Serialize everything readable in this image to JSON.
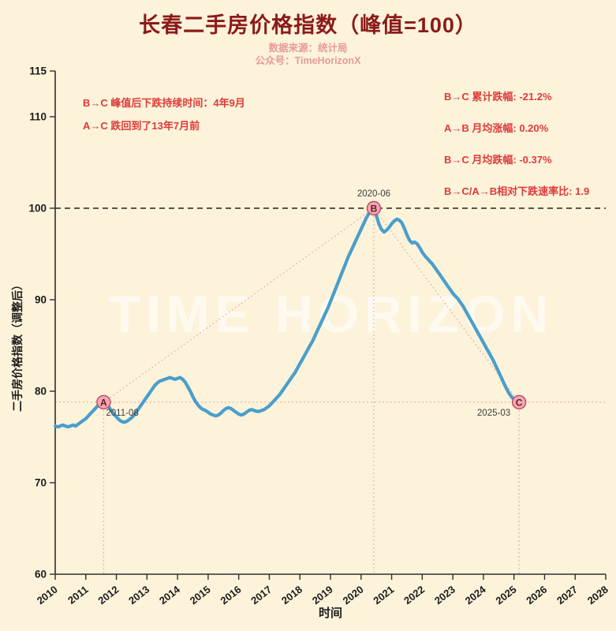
{
  "title": "长春二手房价格指数（峰值=100）",
  "subtitle_source": "数据来源：统计局",
  "subtitle_account": "公众号：TimeHorizonX",
  "watermark": "TIME HORIZON",
  "xlabel": "时间",
  "ylabel": "二手房价格指数（调整后）",
  "annotations_left": [
    "B→C 峰值后下跌持续时间：4年9月",
    "A→C 跌回到了13年7月前"
  ],
  "annotations_right": [
    "B→C 累计跌幅: -21.2%",
    "A→B 月均涨幅: 0.20%",
    "B→C 月均跌幅: -0.37%",
    "B→C/A→B相对下跌速率比: 1.9"
  ],
  "colors": {
    "background": "#fcf3da",
    "title": "#8b1a1a",
    "subtitle": "#e89a9a",
    "annotation_red": "#e03a3a",
    "line_blue": "#4a9ecb",
    "reference_pink": "#e8a4a4",
    "peak_dash_black": "#222222",
    "marker_fill": "#f4a7b4",
    "marker_edge": "#bd4a63",
    "marker_letter": "#5f1f1f",
    "axis": "#2f2f2f",
    "tick_text": "#1c1c1c",
    "date_label": "#3d3d3d"
  },
  "chart_data": {
    "type": "line",
    "title": "长春二手房价格指数（峰值=100）",
    "xlabel": "时间",
    "ylabel": "二手房价格指数（调整后）",
    "x_start": "2010-01",
    "x_freq": "monthly",
    "xlim": [
      2010,
      2028
    ],
    "ylim": [
      60,
      115
    ],
    "xticks": [
      2010,
      2011,
      2012,
      2013,
      2014,
      2015,
      2016,
      2017,
      2018,
      2019,
      2020,
      2021,
      2022,
      2023,
      2024,
      2025,
      2026,
      2027,
      2028
    ],
    "yticks": [
      60,
      70,
      80,
      90,
      100,
      110,
      115
    ],
    "grid": false,
    "values": [
      76.2,
      76.1,
      76.2,
      76.3,
      76.2,
      76.1,
      76.2,
      76.3,
      76.2,
      76.4,
      76.6,
      76.8,
      77.0,
      77.3,
      77.6,
      77.9,
      78.2,
      78.5,
      78.7,
      78.8,
      78.6,
      78.3,
      77.9,
      77.5,
      77.2,
      76.9,
      76.7,
      76.6,
      76.7,
      76.9,
      77.1,
      77.4,
      77.8,
      78.2,
      78.6,
      79.0,
      79.4,
      79.8,
      80.2,
      80.6,
      80.9,
      81.1,
      81.2,
      81.3,
      81.4,
      81.5,
      81.4,
      81.3,
      81.4,
      81.5,
      81.3,
      81.0,
      80.5,
      80.0,
      79.4,
      78.9,
      78.5,
      78.2,
      78.0,
      77.9,
      77.7,
      77.5,
      77.4,
      77.3,
      77.4,
      77.6,
      77.9,
      78.1,
      78.2,
      78.1,
      77.9,
      77.7,
      77.5,
      77.4,
      77.5,
      77.7,
      77.9,
      78.0,
      77.9,
      77.8,
      77.8,
      77.9,
      78.0,
      78.2,
      78.4,
      78.7,
      79.0,
      79.3,
      79.6,
      80.0,
      80.4,
      80.8,
      81.2,
      81.6,
      82.0,
      82.5,
      83.0,
      83.5,
      84.0,
      84.5,
      85.0,
      85.5,
      86.1,
      86.7,
      87.3,
      87.9,
      88.5,
      89.1,
      89.8,
      90.5,
      91.2,
      91.9,
      92.6,
      93.3,
      94.0,
      94.7,
      95.3,
      95.9,
      96.5,
      97.1,
      97.7,
      98.3,
      98.9,
      99.4,
      99.8,
      100.0,
      99.2,
      98.3,
      97.7,
      97.4,
      97.6,
      97.9,
      98.3,
      98.6,
      98.8,
      98.7,
      98.4,
      97.8,
      97.1,
      96.5,
      96.2,
      96.3,
      96.1,
      95.7,
      95.2,
      94.8,
      94.5,
      94.2,
      93.9,
      93.5,
      93.1,
      92.7,
      92.3,
      91.9,
      91.5,
      91.1,
      90.7,
      90.4,
      90.1,
      89.7,
      89.3,
      88.8,
      88.3,
      87.8,
      87.3,
      86.8,
      86.3,
      85.8,
      85.3,
      84.8,
      84.3,
      83.8,
      83.3,
      82.7,
      82.1,
      81.5,
      80.9,
      80.3,
      79.8,
      79.4,
      79.1,
      78.9,
      78.8
    ],
    "markers": [
      {
        "label": "A",
        "month": "2011-08",
        "value": 78.8,
        "date_label": "2011-08",
        "label_pos": "below-right"
      },
      {
        "label": "B",
        "month": "2020-06",
        "value": 100.0,
        "date_label": "2020-06",
        "label_pos": "above"
      },
      {
        "label": "C",
        "month": "2025-03",
        "value": 78.8,
        "date_label": "2025-03",
        "label_pos": "below-left"
      }
    ],
    "reference_lines": {
      "peak_hline": 100,
      "ac_hline": 78.8
    },
    "connectors": [
      [
        "A",
        "B"
      ],
      [
        "B",
        "C"
      ]
    ]
  }
}
